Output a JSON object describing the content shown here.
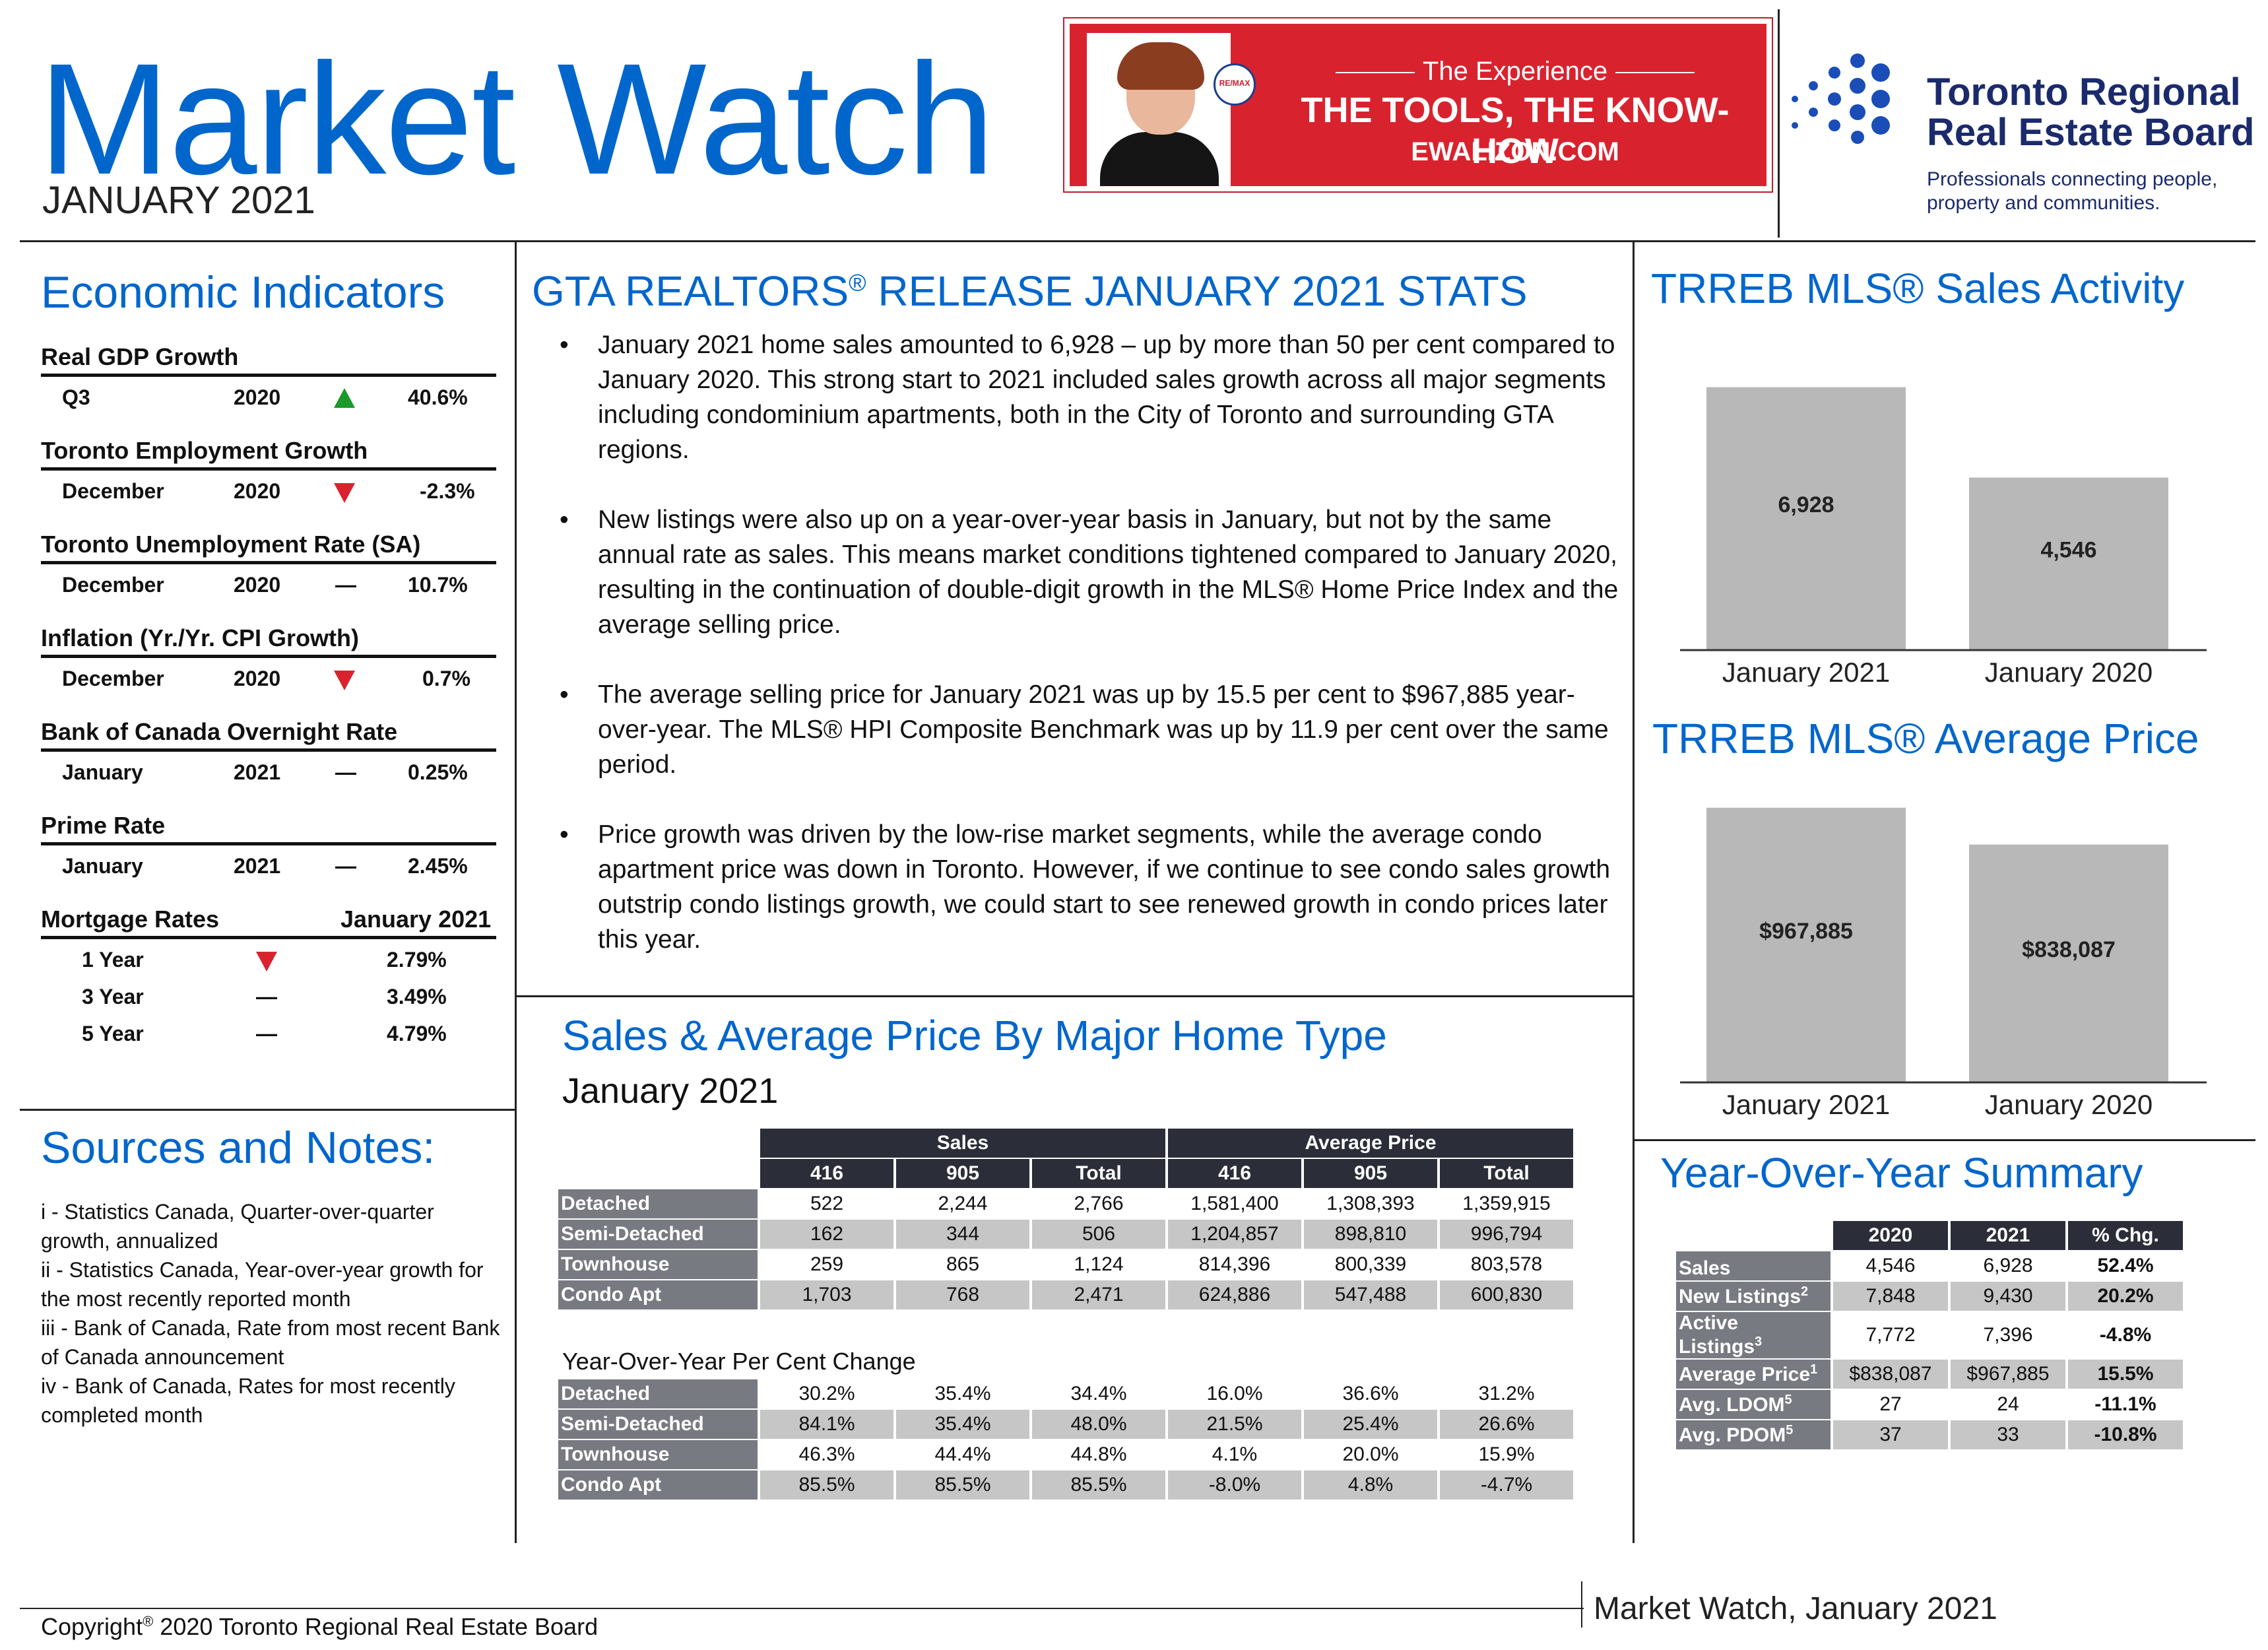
{
  "header": {
    "title": "Market Watch",
    "subtitle": "JANUARY 2021",
    "ad": {
      "line1": "The Experience",
      "line2": "THE TOOLS, THE KNOW-HOW",
      "line3": "EWALIZON.COM",
      "badge": "RE/MAX",
      "color": "#d8232f"
    },
    "org_name_1": "Toronto Regional",
    "org_name_2": "Real Estate Board",
    "org_tag_1": "Professionals connecting people,",
    "org_tag_2": "property and communities."
  },
  "economic": {
    "heading": "Economic Indicators",
    "gdp": {
      "label": "Real GDP Growth",
      "period": "Q3",
      "year": "2020",
      "trend": "up",
      "value": "40.6%"
    },
    "employment": {
      "label": "Toronto Employment Growth",
      "period": "December",
      "year": "2020",
      "trend": "down",
      "value": "-2.3%"
    },
    "unemployment": {
      "label": "Toronto Unemployment Rate (SA)",
      "period": "December",
      "year": "2020",
      "trend": "flat",
      "dash": "—",
      "value": "10.7%"
    },
    "inflation": {
      "label": "Inflation (Yr./Yr. CPI Growth)",
      "period": "December",
      "year": "2020",
      "trend": "down",
      "value": "0.7%"
    },
    "boc": {
      "label": "Bank of Canada Overnight Rate",
      "period": "January",
      "year": "2021",
      "trend": "flat",
      "dash": "—",
      "value": "0.25%"
    },
    "prime": {
      "label": "Prime Rate",
      "period": "January",
      "year": "2021",
      "trend": "flat",
      "dash": "—",
      "value": "2.45%"
    },
    "mortgage": {
      "label": "Mortgage Rates",
      "period": "January 2021",
      "r1": {
        "term": "1 Year",
        "trend": "down",
        "value": "2.79%"
      },
      "r3": {
        "term": "3 Year",
        "dash": "—",
        "value": "3.49%"
      },
      "r5": {
        "term": "5 Year",
        "dash": "—",
        "value": "4.79%"
      }
    }
  },
  "sources": {
    "heading": "Sources and Notes:",
    "i": "i - Statistics Canada, Quarter-over-quarter growth, annualized",
    "ii": "ii - Statistics Canada, Year-over-year growth for the most recently reported month",
    "iii": "iii - Bank of Canada, Rate from most recent Bank of Canada announcement",
    "iv": "iv - Bank of Canada, Rates for most recently completed month"
  },
  "release": {
    "heading_a": "GTA REALTORS",
    "heading_reg": "®",
    "heading_b": " RELEASE JANUARY 2021 STATS",
    "b1": "January 2021 home sales amounted to 6,928 – up by more than 50 per cent compared to January 2020.  This strong start to 2021 included sales growth across all major segments including condominium apartments, both in the City of Toronto and surrounding GTA regions.",
    "b2": "New listings were also up on a year-over-year basis in January, but not by the same annual rate as sales. This means market conditions tightened compared to January 2020, resulting in the continuation of double-digit growth in the MLS® Home Price Index and the average selling price.",
    "b3": "The average selling price for January 2021 was up by 15.5 per cent to $967,885 year-over-year.  The MLS® HPI Composite Benchmark was up by 11.9 per cent over the same period.",
    "b4": "Price growth was driven by the low-rise market segments, while the average condo apartment price was down in Toronto. However, if we continue to see condo sales growth outstrip condo listings growth, we could start to see renewed growth in condo prices later this year."
  },
  "hometype": {
    "heading": "Sales & Average Price By Major Home Type",
    "period": "January 2021",
    "group_sales": "Sales",
    "group_price": "Average Price",
    "cols": [
      "416",
      "905",
      "Total",
      "416",
      "905",
      "Total"
    ],
    "rows": [
      {
        "label": "Detached",
        "v": [
          "522",
          "2,244",
          "2,766",
          "1,581,400",
          "1,308,393",
          "1,359,915"
        ]
      },
      {
        "label": "Semi-Detached",
        "v": [
          "162",
          "344",
          "506",
          "1,204,857",
          "898,810",
          "996,794"
        ]
      },
      {
        "label": "Townhouse",
        "v": [
          "259",
          "865",
          "1,124",
          "814,396",
          "800,339",
          "803,578"
        ]
      },
      {
        "label": "Condo Apt",
        "v": [
          "1,703",
          "768",
          "2,471",
          "624,886",
          "547,488",
          "600,830"
        ]
      }
    ],
    "yoy_heading": "Year-Over-Year Per Cent Change",
    "yoy_rows": [
      {
        "label": "Detached",
        "v": [
          "30.2%",
          "35.4%",
          "34.4%",
          "16.0%",
          "36.6%",
          "31.2%"
        ]
      },
      {
        "label": "Semi-Detached",
        "v": [
          "84.1%",
          "35.4%",
          "48.0%",
          "21.5%",
          "25.4%",
          "26.6%"
        ]
      },
      {
        "label": "Townhouse",
        "v": [
          "46.3%",
          "44.4%",
          "44.8%",
          "4.1%",
          "20.0%",
          "15.9%"
        ]
      },
      {
        "label": "Condo Apt",
        "v": [
          "85.5%",
          "85.5%",
          "85.5%",
          "-8.0%",
          "4.8%",
          "-4.7%"
        ]
      }
    ]
  },
  "sales_activity": {
    "heading": "TRREB MLS® Sales Activity"
  },
  "avg_price": {
    "heading": "TRREB MLS® Average Price"
  },
  "chart_data": [
    {
      "type": "bar",
      "title": "TRREB MLS® Sales Activity",
      "categories": [
        "January 2021",
        "January 2020"
      ],
      "values": [
        6928,
        4546
      ],
      "labels": [
        "6,928",
        "4,546"
      ],
      "ylim": [
        0,
        8000
      ],
      "color": "#b8b8b8"
    },
    {
      "type": "bar",
      "title": "TRREB MLS® Average Price",
      "categories": [
        "January 2021",
        "January 2020"
      ],
      "values": [
        967885,
        838087
      ],
      "labels": [
        "$967,885",
        "$838,087"
      ],
      "ylim": [
        0,
        1000000
      ],
      "color": "#b8b8b8"
    }
  ],
  "yoy_summary": {
    "heading": "Year-Over-Year Summary",
    "cols": [
      "2020",
      "2021",
      "% Chg."
    ],
    "rows": [
      {
        "label": "Sales",
        "sup": "",
        "v": [
          "4,546",
          "6,928",
          "52.4%"
        ]
      },
      {
        "label": "New Listings",
        "sup": "2",
        "v": [
          "7,848",
          "9,430",
          "20.2%"
        ]
      },
      {
        "label": "Active Listings",
        "sup": "3",
        "v": [
          "7,772",
          "7,396",
          "-4.8%"
        ]
      },
      {
        "label": "Average Price",
        "sup": "1",
        "v": [
          "$838,087",
          "$967,885",
          "15.5%"
        ]
      },
      {
        "label": "Avg. LDOM",
        "sup": "5",
        "v": [
          "27",
          "24",
          "-11.1%"
        ]
      },
      {
        "label": "Avg. PDOM",
        "sup": "5",
        "v": [
          "37",
          "33",
          "-10.8%"
        ]
      }
    ]
  },
  "footer": {
    "copyright_a": "Copyright",
    "copyright_reg": "®",
    "copyright_b": " 2020 Toronto Regional Real Estate Board",
    "right": "Market Watch, January 2021"
  }
}
